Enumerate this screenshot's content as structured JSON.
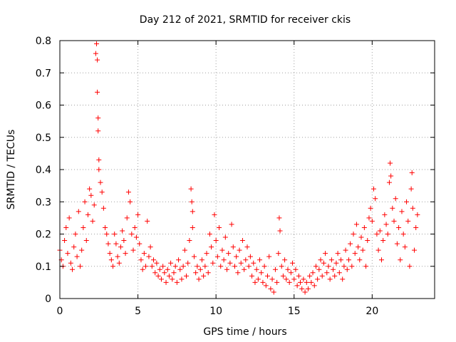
{
  "chart_data": {
    "type": "scatter",
    "title": "Day 212 of 2021, SRMTID for receiver ckis",
    "xlabel": "GPS time / hours",
    "ylabel": "SRMTID / TECUs",
    "xlim": [
      0,
      24
    ],
    "ylim": [
      0,
      0.8
    ],
    "xticks": [
      0,
      5,
      10,
      15,
      20
    ],
    "xtick_labels": [
      "0",
      "5",
      "10",
      "15",
      "20"
    ],
    "yticks": [
      0,
      0.1,
      0.2,
      0.3,
      0.4,
      0.5,
      0.6,
      0.7,
      0.8
    ],
    "ytick_labels": [
      "0",
      "0.1",
      "0.2",
      "0.3",
      "0.4",
      "0.5",
      "0.6",
      "0.7",
      "0.8"
    ],
    "grid": true,
    "marker": "plus",
    "color": "#ff0000",
    "series": [
      {
        "name": "SRMTID",
        "points": [
          [
            0.0,
            0.15
          ],
          [
            0.1,
            0.12
          ],
          [
            0.2,
            0.1
          ],
          [
            0.3,
            0.18
          ],
          [
            0.4,
            0.22
          ],
          [
            0.5,
            0.14
          ],
          [
            0.6,
            0.25
          ],
          [
            0.7,
            0.11
          ],
          [
            0.8,
            0.09
          ],
          [
            0.9,
            0.16
          ],
          [
            1.0,
            0.2
          ],
          [
            1.1,
            0.13
          ],
          [
            1.2,
            0.27
          ],
          [
            1.3,
            0.1
          ],
          [
            1.4,
            0.15
          ],
          [
            1.5,
            0.22
          ],
          [
            1.6,
            0.3
          ],
          [
            1.7,
            0.18
          ],
          [
            1.8,
            0.26
          ],
          [
            1.9,
            0.34
          ],
          [
            2.0,
            0.32
          ],
          [
            2.1,
            0.24
          ],
          [
            2.2,
            0.29
          ],
          [
            2.3,
            0.76
          ],
          [
            2.35,
            0.79
          ],
          [
            2.4,
            0.74
          ],
          [
            2.4,
            0.64
          ],
          [
            2.45,
            0.56
          ],
          [
            2.45,
            0.52
          ],
          [
            2.5,
            0.43
          ],
          [
            2.5,
            0.4
          ],
          [
            2.6,
            0.36
          ],
          [
            2.7,
            0.33
          ],
          [
            2.8,
            0.28
          ],
          [
            2.9,
            0.22
          ],
          [
            3.0,
            0.2
          ],
          [
            3.1,
            0.17
          ],
          [
            3.2,
            0.14
          ],
          [
            3.3,
            0.12
          ],
          [
            3.4,
            0.1
          ],
          [
            3.5,
            0.2
          ],
          [
            3.6,
            0.17
          ],
          [
            3.7,
            0.13
          ],
          [
            3.8,
            0.11
          ],
          [
            3.9,
            0.16
          ],
          [
            4.0,
            0.21
          ],
          [
            4.1,
            0.18
          ],
          [
            4.2,
            0.14
          ],
          [
            4.3,
            0.25
          ],
          [
            4.4,
            0.33
          ],
          [
            4.5,
            0.3
          ],
          [
            4.6,
            0.2
          ],
          [
            4.7,
            0.15
          ],
          [
            4.8,
            0.22
          ],
          [
            4.9,
            0.19
          ],
          [
            5.0,
            0.26
          ],
          [
            5.1,
            0.17
          ],
          [
            5.2,
            0.12
          ],
          [
            5.3,
            0.09
          ],
          [
            5.4,
            0.14
          ],
          [
            5.5,
            0.1
          ],
          [
            5.6,
            0.24
          ],
          [
            5.7,
            0.13
          ],
          [
            5.8,
            0.16
          ],
          [
            5.9,
            0.1
          ],
          [
            6.0,
            0.12
          ],
          [
            6.1,
            0.08
          ],
          [
            6.2,
            0.11
          ],
          [
            6.3,
            0.07
          ],
          [
            6.4,
            0.09
          ],
          [
            6.5,
            0.06
          ],
          [
            6.6,
            0.1
          ],
          [
            6.7,
            0.08
          ],
          [
            6.8,
            0.05
          ],
          [
            6.9,
            0.09
          ],
          [
            7.0,
            0.07
          ],
          [
            7.1,
            0.11
          ],
          [
            7.2,
            0.06
          ],
          [
            7.3,
            0.08
          ],
          [
            7.4,
            0.1
          ],
          [
            7.5,
            0.05
          ],
          [
            7.6,
            0.12
          ],
          [
            7.7,
            0.09
          ],
          [
            7.8,
            0.06
          ],
          [
            7.9,
            0.1
          ],
          [
            8.0,
            0.15
          ],
          [
            8.1,
            0.07
          ],
          [
            8.2,
            0.11
          ],
          [
            8.3,
            0.18
          ],
          [
            8.4,
            0.34
          ],
          [
            8.45,
            0.3
          ],
          [
            8.5,
            0.27
          ],
          [
            8.5,
            0.22
          ],
          [
            8.6,
            0.13
          ],
          [
            8.7,
            0.08
          ],
          [
            8.8,
            0.1
          ],
          [
            8.9,
            0.06
          ],
          [
            9.0,
            0.09
          ],
          [
            9.1,
            0.12
          ],
          [
            9.2,
            0.07
          ],
          [
            9.3,
            0.1
          ],
          [
            9.4,
            0.14
          ],
          [
            9.5,
            0.08
          ],
          [
            9.6,
            0.2
          ],
          [
            9.7,
            0.16
          ],
          [
            9.8,
            0.11
          ],
          [
            9.9,
            0.26
          ],
          [
            10.0,
            0.18
          ],
          [
            10.1,
            0.13
          ],
          [
            10.2,
            0.22
          ],
          [
            10.3,
            0.1
          ],
          [
            10.4,
            0.15
          ],
          [
            10.5,
            0.12
          ],
          [
            10.6,
            0.19
          ],
          [
            10.7,
            0.09
          ],
          [
            10.8,
            0.14
          ],
          [
            10.9,
            0.11
          ],
          [
            11.0,
            0.23
          ],
          [
            11.1,
            0.16
          ],
          [
            11.2,
            0.1
          ],
          [
            11.3,
            0.13
          ],
          [
            11.4,
            0.08
          ],
          [
            11.5,
            0.15
          ],
          [
            11.6,
            0.11
          ],
          [
            11.7,
            0.18
          ],
          [
            11.8,
            0.09
          ],
          [
            11.9,
            0.12
          ],
          [
            12.0,
            0.16
          ],
          [
            12.1,
            0.1
          ],
          [
            12.2,
            0.13
          ],
          [
            12.3,
            0.07
          ],
          [
            12.4,
            0.11
          ],
          [
            12.5,
            0.05
          ],
          [
            12.6,
            0.09
          ],
          [
            12.7,
            0.06
          ],
          [
            12.8,
            0.12
          ],
          [
            12.9,
            0.08
          ],
          [
            13.0,
            0.05
          ],
          [
            13.1,
            0.1
          ],
          [
            13.2,
            0.04
          ],
          [
            13.3,
            0.07
          ],
          [
            13.4,
            0.13
          ],
          [
            13.5,
            0.03
          ],
          [
            13.6,
            0.06
          ],
          [
            13.7,
            0.02
          ],
          [
            13.8,
            0.09
          ],
          [
            13.9,
            0.05
          ],
          [
            14.0,
            0.14
          ],
          [
            14.05,
            0.25
          ],
          [
            14.1,
            0.21
          ],
          [
            14.2,
            0.1
          ],
          [
            14.3,
            0.07
          ],
          [
            14.4,
            0.12
          ],
          [
            14.5,
            0.06
          ],
          [
            14.6,
            0.09
          ],
          [
            14.7,
            0.05
          ],
          [
            14.8,
            0.08
          ],
          [
            14.9,
            0.11
          ],
          [
            15.0,
            0.06
          ],
          [
            15.1,
            0.09
          ],
          [
            15.2,
            0.04
          ],
          [
            15.3,
            0.07
          ],
          [
            15.4,
            0.05
          ],
          [
            15.5,
            0.03
          ],
          [
            15.6,
            0.06
          ],
          [
            15.7,
            0.02
          ],
          [
            15.8,
            0.05
          ],
          [
            15.9,
            0.03
          ],
          [
            16.0,
            0.07
          ],
          [
            16.1,
            0.05
          ],
          [
            16.2,
            0.08
          ],
          [
            16.3,
            0.04
          ],
          [
            16.4,
            0.1
          ],
          [
            16.5,
            0.06
          ],
          [
            16.6,
            0.09
          ],
          [
            16.7,
            0.12
          ],
          [
            16.8,
            0.07
          ],
          [
            16.9,
            0.11
          ],
          [
            17.0,
            0.14
          ],
          [
            17.1,
            0.08
          ],
          [
            17.2,
            0.1
          ],
          [
            17.3,
            0.06
          ],
          [
            17.4,
            0.12
          ],
          [
            17.5,
            0.09
          ],
          [
            17.6,
            0.07
          ],
          [
            17.7,
            0.11
          ],
          [
            17.8,
            0.14
          ],
          [
            17.9,
            0.08
          ],
          [
            18.0,
            0.12
          ],
          [
            18.1,
            0.06
          ],
          [
            18.2,
            0.1
          ],
          [
            18.3,
            0.15
          ],
          [
            18.4,
            0.09
          ],
          [
            18.5,
            0.12
          ],
          [
            18.6,
            0.17
          ],
          [
            18.7,
            0.1
          ],
          [
            18.8,
            0.2
          ],
          [
            18.9,
            0.14
          ],
          [
            19.0,
            0.23
          ],
          [
            19.1,
            0.16
          ],
          [
            19.2,
            0.12
          ],
          [
            19.3,
            0.19
          ],
          [
            19.4,
            0.15
          ],
          [
            19.5,
            0.22
          ],
          [
            19.6,
            0.1
          ],
          [
            19.7,
            0.18
          ],
          [
            19.8,
            0.25
          ],
          [
            19.9,
            0.28
          ],
          [
            20.0,
            0.24
          ],
          [
            20.1,
            0.34
          ],
          [
            20.2,
            0.31
          ],
          [
            20.3,
            0.2
          ],
          [
            20.4,
            0.15
          ],
          [
            20.5,
            0.21
          ],
          [
            20.6,
            0.12
          ],
          [
            20.7,
            0.18
          ],
          [
            20.8,
            0.26
          ],
          [
            20.9,
            0.23
          ],
          [
            21.0,
            0.2
          ],
          [
            21.1,
            0.36
          ],
          [
            21.15,
            0.42
          ],
          [
            21.2,
            0.38
          ],
          [
            21.3,
            0.28
          ],
          [
            21.4,
            0.24
          ],
          [
            21.5,
            0.31
          ],
          [
            21.6,
            0.17
          ],
          [
            21.7,
            0.22
          ],
          [
            21.8,
            0.12
          ],
          [
            21.9,
            0.27
          ],
          [
            22.0,
            0.2
          ],
          [
            22.1,
            0.16
          ],
          [
            22.2,
            0.3
          ],
          [
            22.3,
            0.24
          ],
          [
            22.4,
            0.1
          ],
          [
            22.5,
            0.34
          ],
          [
            22.55,
            0.39
          ],
          [
            22.6,
            0.28
          ],
          [
            22.7,
            0.15
          ],
          [
            22.8,
            0.22
          ],
          [
            22.9,
            0.26
          ]
        ]
      }
    ]
  }
}
